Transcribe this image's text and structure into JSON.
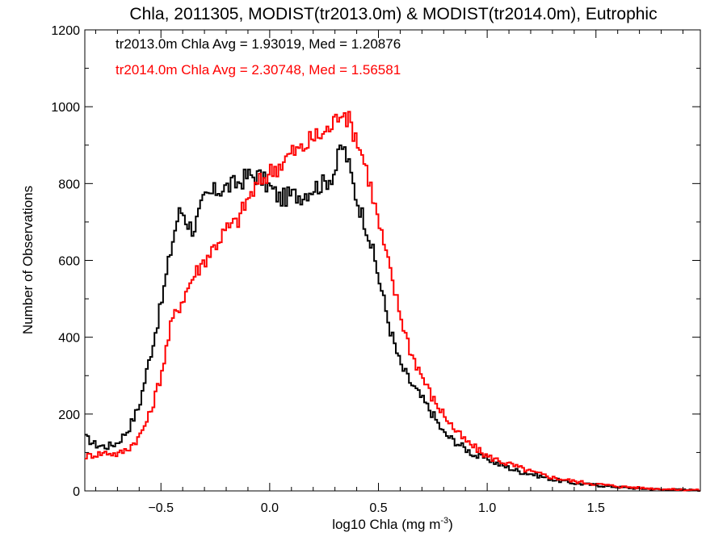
{
  "chart_data": {
    "type": "line",
    "title": "Chla, 2011305, MODIST(tr2013.0m) & MODIST(tr2014.0m), Eutrophic",
    "xlabel_base": "log10 Chla (mg m",
    "xlabel_exp": "-3",
    "xlabel_close": ")",
    "ylabel": "Number of Observations",
    "xlim": [
      -0.85,
      1.98
    ],
    "ylim": [
      0,
      1200
    ],
    "xticks": [
      -0.5,
      0.0,
      0.5,
      1.0,
      1.5
    ],
    "xtick_labels": [
      "−0.5",
      "0.0",
      "0.5",
      "1.0",
      "1.5"
    ],
    "yticks": [
      0,
      200,
      400,
      600,
      800,
      1000,
      1200
    ],
    "ytick_labels": [
      "0",
      "200",
      "400",
      "600",
      "800",
      "1000",
      "1200"
    ],
    "grid": false,
    "step": true,
    "series": [
      {
        "stat_label": "tr2013.0m Chla Avg = 1.93019, Med = 1.20876",
        "color": "#000000",
        "x": [
          -0.85,
          -0.8,
          -0.75,
          -0.7,
          -0.65,
          -0.6,
          -0.55,
          -0.5,
          -0.45,
          -0.42,
          -0.4,
          -0.38,
          -0.35,
          -0.3,
          -0.25,
          -0.2,
          -0.15,
          -0.1,
          -0.05,
          0.0,
          0.05,
          0.1,
          0.15,
          0.2,
          0.25,
          0.3,
          0.33,
          0.35,
          0.4,
          0.45,
          0.5,
          0.55,
          0.6,
          0.65,
          0.7,
          0.75,
          0.8,
          0.85,
          0.9,
          0.95,
          1.0,
          1.05,
          1.1,
          1.15,
          1.2,
          1.3,
          1.4,
          1.5,
          1.6,
          1.7,
          1.8,
          1.9,
          1.98
        ],
        "y": [
          140,
          120,
          115,
          125,
          160,
          220,
          350,
          480,
          640,
          720,
          730,
          700,
          680,
          760,
          780,
          790,
          800,
          820,
          820,
          790,
          760,
          770,
          770,
          790,
          800,
          830,
          900,
          880,
          760,
          680,
          560,
          430,
          330,
          280,
          240,
          200,
          150,
          130,
          110,
          90,
          85,
          70,
          60,
          50,
          45,
          30,
          20,
          15,
          10,
          6,
          4,
          3,
          2
        ]
      },
      {
        "stat_label": "tr2014.0m Chla Avg = 2.30748, Med = 1.56581",
        "color": "#ff0000",
        "x": [
          -0.85,
          -0.8,
          -0.75,
          -0.7,
          -0.65,
          -0.6,
          -0.55,
          -0.5,
          -0.45,
          -0.4,
          -0.35,
          -0.3,
          -0.25,
          -0.2,
          -0.15,
          -0.1,
          -0.05,
          0.0,
          0.05,
          0.1,
          0.15,
          0.2,
          0.25,
          0.3,
          0.33,
          0.35,
          0.4,
          0.45,
          0.5,
          0.55,
          0.6,
          0.65,
          0.7,
          0.75,
          0.8,
          0.85,
          0.9,
          0.95,
          1.0,
          1.05,
          1.1,
          1.15,
          1.2,
          1.3,
          1.4,
          1.5,
          1.6,
          1.7,
          1.8,
          1.9,
          1.98
        ],
        "y": [
          90,
          95,
          100,
          95,
          110,
          140,
          200,
          300,
          440,
          500,
          560,
          600,
          640,
          680,
          700,
          760,
          800,
          830,
          850,
          880,
          890,
          920,
          930,
          960,
          1000,
          980,
          920,
          830,
          700,
          580,
          460,
          360,
          300,
          240,
          200,
          160,
          130,
          110,
          90,
          80,
          70,
          60,
          50,
          35,
          25,
          18,
          12,
          8,
          5,
          3,
          2
        ]
      }
    ]
  }
}
